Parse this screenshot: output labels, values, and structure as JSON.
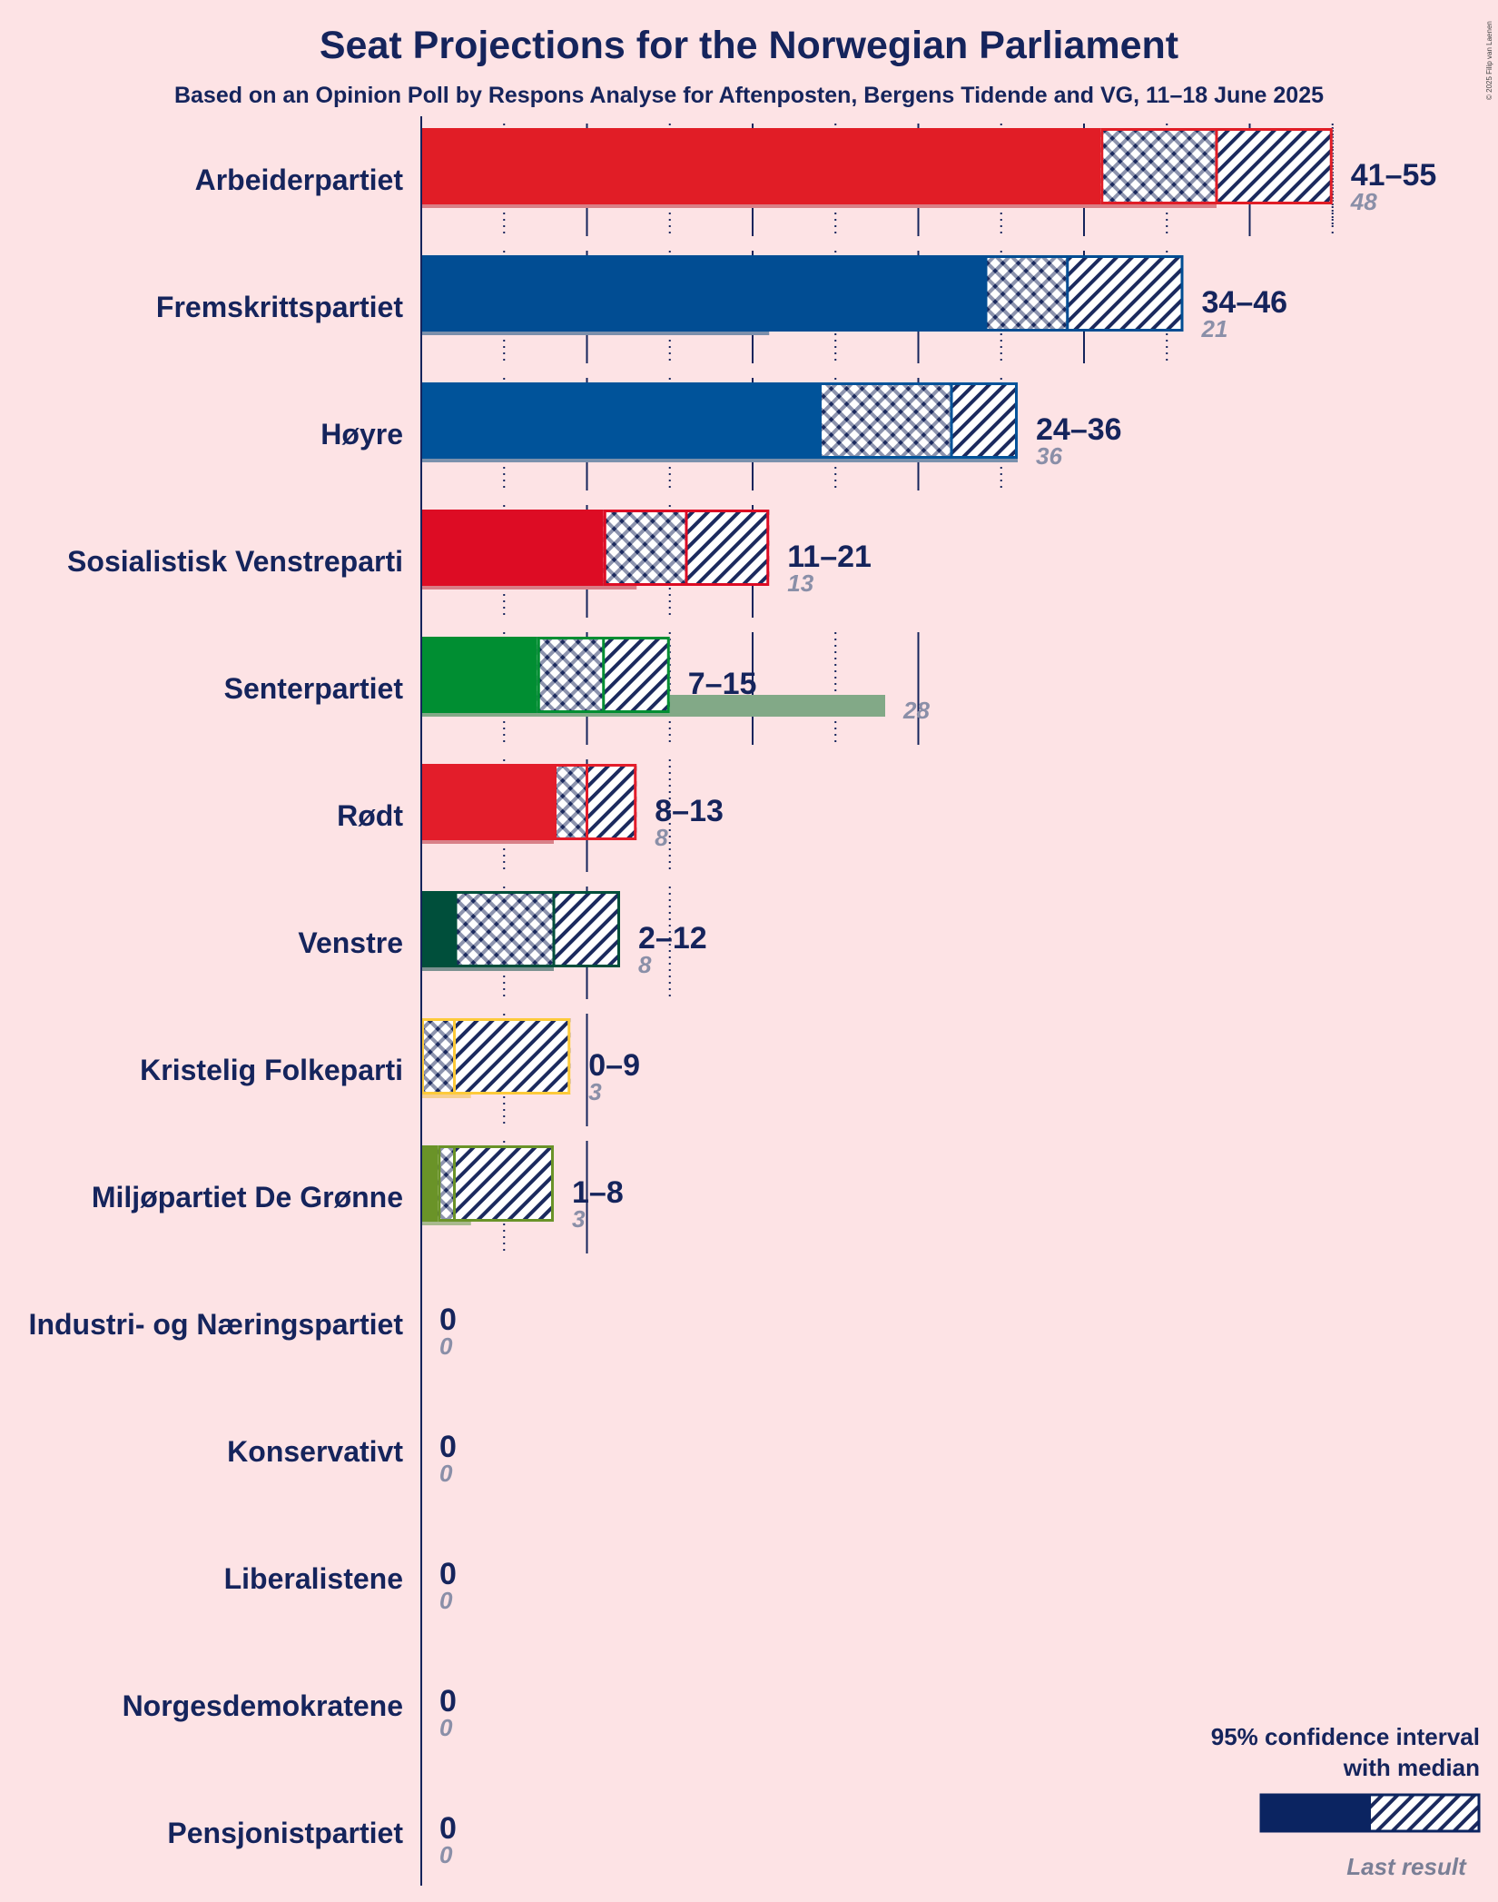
{
  "chart_data": {
    "type": "bar",
    "title": "Seat Projections for the Norwegian Parliament",
    "subtitle": "Based on an Opinion Poll by Respons Analyse for Aftenposten, Bergens Tidende and VG, 11–18 June 2025",
    "copyright": "© 2025 Filip van Laenen",
    "xlabel": "",
    "ylabel": "",
    "xlim": [
      0,
      60
    ],
    "grid": true,
    "majority_line": 50,
    "legend": {
      "title_line1": "95% confidence interval",
      "title_line2": "with median",
      "last_result": "Last result",
      "position": "bottom-right"
    },
    "categories": [
      "Arbeiderpartiet",
      "Fremskrittspartiet",
      "Høyre",
      "Sosialistisk Venstreparti",
      "Senterpartiet",
      "Rødt",
      "Venstre",
      "Kristelig Folkeparti",
      "Miljøpartiet De Grønne",
      "Industri- og Næringspartiet",
      "Konservativt",
      "Liberalistene",
      "Norgesdemokratene",
      "Pensjonistpartiet"
    ],
    "series": [
      {
        "name": "Arbeiderpartiet",
        "low": 41,
        "median": 48,
        "high": 55,
        "range_label": "41–55",
        "last": 48,
        "last_label": "48",
        "color": "#e11d26",
        "last_color": "#d97f86"
      },
      {
        "name": "Fremskrittspartiet",
        "low": 34,
        "median": 39,
        "high": 46,
        "range_label": "34–46",
        "last": 21,
        "last_label": "21",
        "color": "#014d93",
        "last_color": "#7b8fab"
      },
      {
        "name": "Høyre",
        "low": 24,
        "median": 32,
        "high": 36,
        "range_label": "24–36",
        "last": 36,
        "last_label": "36",
        "color": "#00539a",
        "last_color": "#7b91ad"
      },
      {
        "name": "Sosialistisk Venstreparti",
        "low": 11,
        "median": 16,
        "high": 21,
        "range_label": "11–21",
        "last": 13,
        "last_label": "13",
        "color": "#dd0c24",
        "last_color": "#d97c86"
      },
      {
        "name": "Senterpartiet",
        "low": 7,
        "median": 11,
        "high": 15,
        "range_label": "7–15",
        "last": 28,
        "last_label": "28",
        "color": "#008e32",
        "last_color": "#82a987"
      },
      {
        "name": "Rødt",
        "low": 8,
        "median": 10,
        "high": 13,
        "range_label": "8–13",
        "last": 8,
        "last_label": "8",
        "color": "#e31d2a",
        "last_color": "#d98088"
      },
      {
        "name": "Venstre",
        "low": 2,
        "median": 8,
        "high": 12,
        "range_label": "2–12",
        "last": 8,
        "last_label": "8",
        "color": "#004f3b",
        "last_color": "#7c9190"
      },
      {
        "name": "Kristelig Folkeparti",
        "low": 0,
        "median": 2,
        "high": 9,
        "range_label": "0–9",
        "last": 3,
        "last_label": "3",
        "color": "#fdca3a",
        "last_color": "#f6cf8e"
      },
      {
        "name": "Miljøpartiet De Grønne",
        "low": 1,
        "median": 2,
        "high": 8,
        "range_label": "1–8",
        "last": 3,
        "last_label": "3",
        "color": "#6a9328",
        "last_color": "#a8b98d"
      },
      {
        "name": "Industri- og Næringspartiet",
        "low": 0,
        "median": 0,
        "high": 0,
        "range_label": "0",
        "last": 0,
        "last_label": "0",
        "color": "#1b2a5e",
        "last_color": "#8a8fa8"
      },
      {
        "name": "Konservativt",
        "low": 0,
        "median": 0,
        "high": 0,
        "range_label": "0",
        "last": 0,
        "last_label": "0",
        "color": "#1b2a5e",
        "last_color": "#8a8fa8"
      },
      {
        "name": "Liberalistene",
        "low": 0,
        "median": 0,
        "high": 0,
        "range_label": "0",
        "last": 0,
        "last_label": "0",
        "color": "#1b2a5e",
        "last_color": "#8a8fa8"
      },
      {
        "name": "Norgesdemokratene",
        "low": 0,
        "median": 0,
        "high": 0,
        "range_label": "0",
        "last": 0,
        "last_label": "0",
        "color": "#1b2a5e",
        "last_color": "#8a8fa8"
      },
      {
        "name": "Pensjonistpartiet",
        "low": 0,
        "median": 0,
        "high": 0,
        "range_label": "0",
        "last": 0,
        "last_label": "0",
        "color": "#1b2a5e",
        "last_color": "#8a8fa8"
      }
    ]
  },
  "colors": {
    "background": "#fde3e5",
    "axis": "#15245c",
    "text": "#15245c",
    "legend_bar": "#0b2461",
    "legend_last": "#7a7f96"
  }
}
